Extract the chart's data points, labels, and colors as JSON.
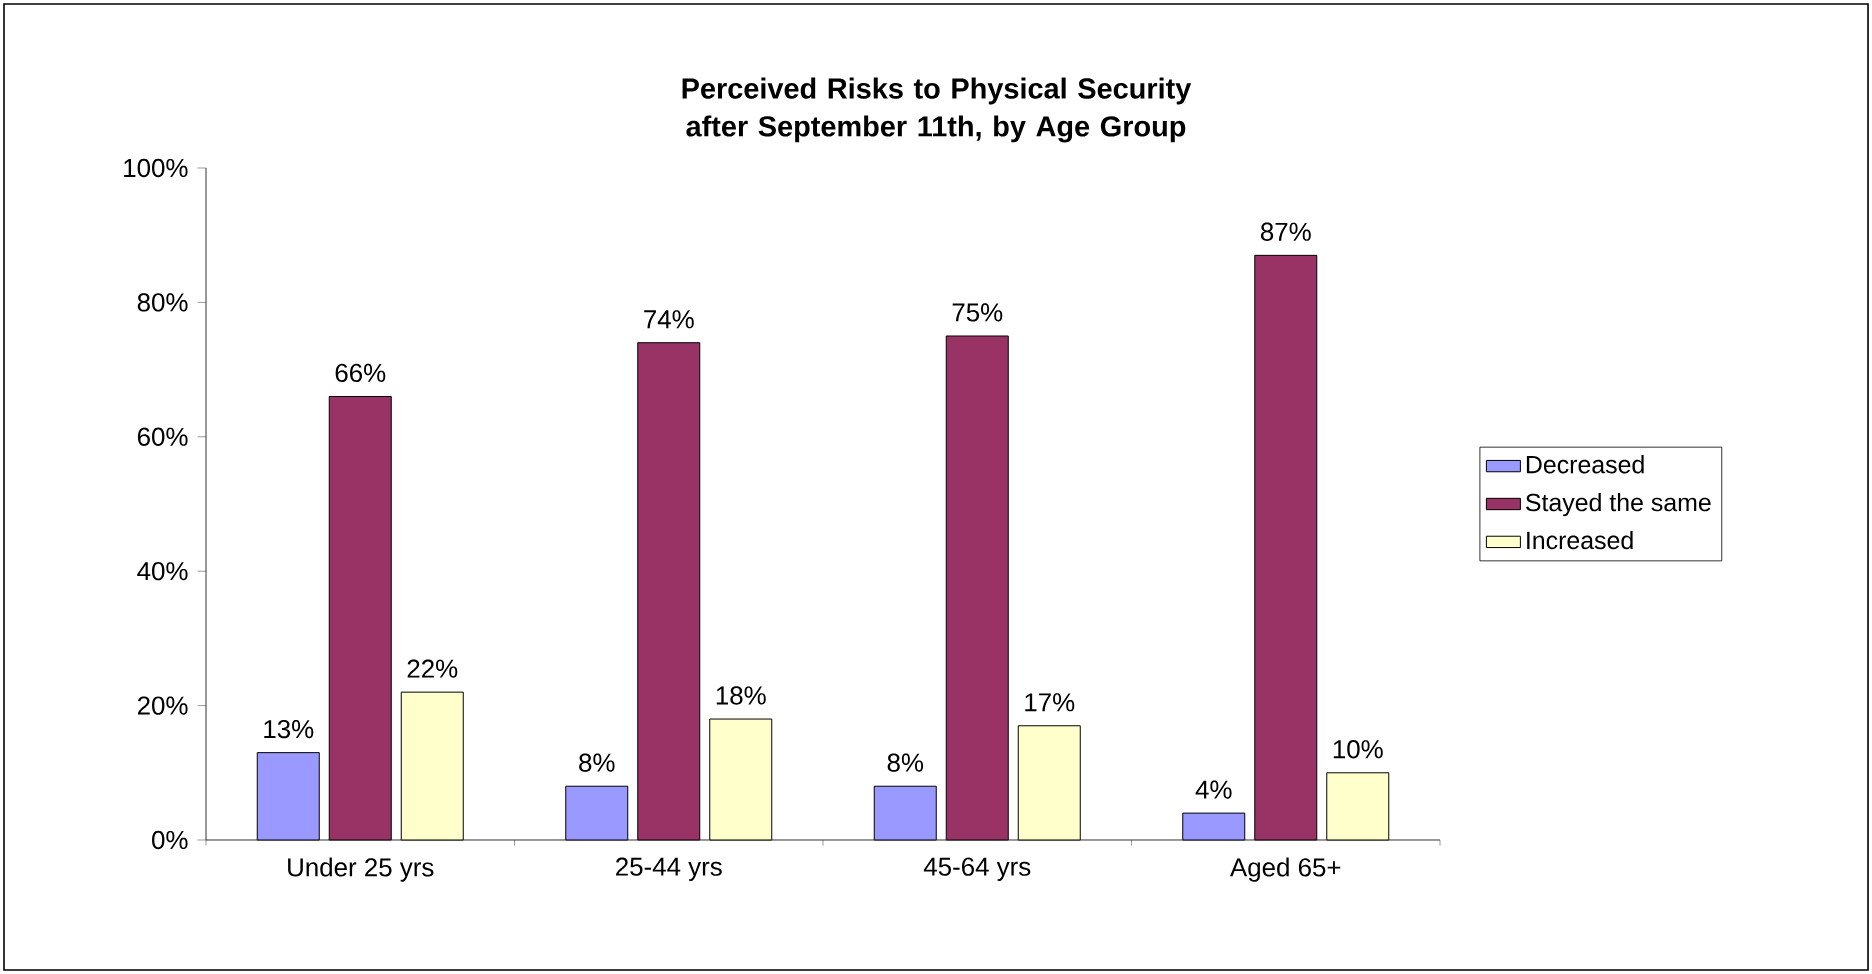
{
  "chart_data": {
    "type": "bar",
    "title": "Perceived Risks to Physical Security after September 11th, by Age Group",
    "categories": [
      "Under 25 yrs",
      "25-44 yrs",
      "45-64 yrs",
      "Aged 65+"
    ],
    "series": [
      {
        "name": "Decreased",
        "color": "#9999ff",
        "values": [
          13,
          8,
          8,
          4
        ],
        "value_labels": [
          "13%",
          "8%",
          "8%",
          "4%"
        ]
      },
      {
        "name": "Stayed the same",
        "color": "#993366",
        "values": [
          66,
          74,
          75,
          87
        ],
        "value_labels": [
          "66%",
          "74%",
          "75%",
          "87%"
        ]
      },
      {
        "name": "Increased",
        "color": "#ffffcc",
        "values": [
          22,
          18,
          17,
          10
        ],
        "value_labels": [
          "22%",
          "18%",
          "17%",
          "10%"
        ]
      }
    ],
    "ylim": [
      0,
      100
    ],
    "yticks": [
      {
        "value": 0,
        "label": "0%"
      },
      {
        "value": 20,
        "label": "20%"
      },
      {
        "value": 40,
        "label": "40%"
      },
      {
        "value": 60,
        "label": "60%"
      },
      {
        "value": 80,
        "label": "80%"
      },
      {
        "value": 100,
        "label": "100%"
      }
    ],
    "grid": false,
    "legend": "right"
  }
}
